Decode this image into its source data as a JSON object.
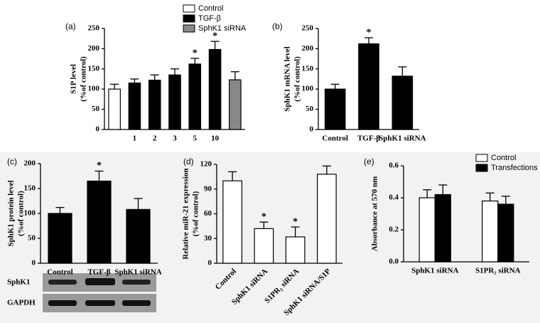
{
  "chart_data": [
    {
      "type": "bar",
      "panel_label": "(a)",
      "y_label": "S1P level",
      "y_sublabel": "(%of control)",
      "categories": [
        null,
        "1",
        "2",
        "3",
        "5",
        "10",
        null
      ],
      "values": [
        100,
        115,
        122,
        135,
        162,
        198,
        123
      ],
      "errors": [
        12,
        10,
        13,
        15,
        14,
        20,
        20
      ],
      "bar_colors": [
        "#ffffff",
        "#000000",
        "#000000",
        "#000000",
        "#000000",
        "#000000",
        "#888888"
      ],
      "significance": [
        null,
        null,
        null,
        null,
        "*",
        "*",
        null
      ],
      "ylim": [
        0,
        250
      ],
      "yticks": [
        0,
        50,
        100,
        150,
        200,
        250
      ],
      "legend": [
        {
          "name": "Control",
          "color": "#ffffff"
        },
        {
          "name": "TGF-β",
          "color": "#000000"
        },
        {
          "name": "SphK1 siRNA",
          "color": "#888888"
        }
      ]
    },
    {
      "type": "bar",
      "panel_label": "(b)",
      "y_label": "SphK1 mRNA level",
      "y_sublabel": "(%of control)",
      "categories": [
        "Control",
        "TGF-β",
        "SphK1 siRNA"
      ],
      "values": [
        100,
        212,
        132
      ],
      "errors": [
        12,
        15,
        23
      ],
      "color": "#000000",
      "significance": [
        null,
        "*",
        null
      ],
      "ylim": [
        0,
        250
      ],
      "yticks": [
        0,
        50,
        100,
        150,
        200,
        250
      ]
    },
    {
      "type": "bar",
      "panel_label": "(c)",
      "y_label": "SphK1 protein level",
      "y_sublabel": "(%of control)",
      "categories": [
        "Control",
        "TGF-β",
        "SphK1 siRNA"
      ],
      "values": [
        100,
        165,
        108
      ],
      "errors": [
        12,
        20,
        22
      ],
      "color": "#000000",
      "significance": [
        null,
        "*",
        null
      ],
      "ylim": [
        0,
        200
      ],
      "yticks": [
        0,
        50,
        100,
        150,
        200
      ],
      "blot_labels": [
        "SphK1",
        "GAPDH"
      ]
    },
    {
      "type": "bar",
      "panel_label": "(d)",
      "y_label": "Relative miR-21 expression",
      "y_sublabel": "(%of control)",
      "categories": [
        "Control",
        "SphK1 siRNA",
        "S1PR₂ siRNA",
        "SphK1 siRNA/S1P"
      ],
      "values": [
        100,
        42,
        32,
        108
      ],
      "errors": [
        11,
        8,
        12,
        10
      ],
      "color": "#ffffff",
      "significance": [
        null,
        "*",
        "*",
        null
      ],
      "ylim": [
        0,
        120
      ],
      "yticks": [
        0,
        30,
        60,
        90,
        120
      ]
    },
    {
      "type": "grouped_bar",
      "panel_label": "(e)",
      "y_label": "Absorbance at 570 nm",
      "categories": [
        "SphK1 siRNA",
        "S1PR₂ siRNA"
      ],
      "series": [
        {
          "name": "Control",
          "color": "#ffffff",
          "values": [
            0.4,
            0.38
          ],
          "errors": [
            0.05,
            0.05
          ]
        },
        {
          "name": "Transfections",
          "color": "#000000",
          "values": [
            0.42,
            0.36
          ],
          "errors": [
            0.06,
            0.05
          ]
        }
      ],
      "ylim": [
        0,
        0.6
      ],
      "yticks": [
        {
          "value": 0,
          "label": "0.0"
        },
        0.2,
        0.4,
        0.6
      ]
    }
  ]
}
